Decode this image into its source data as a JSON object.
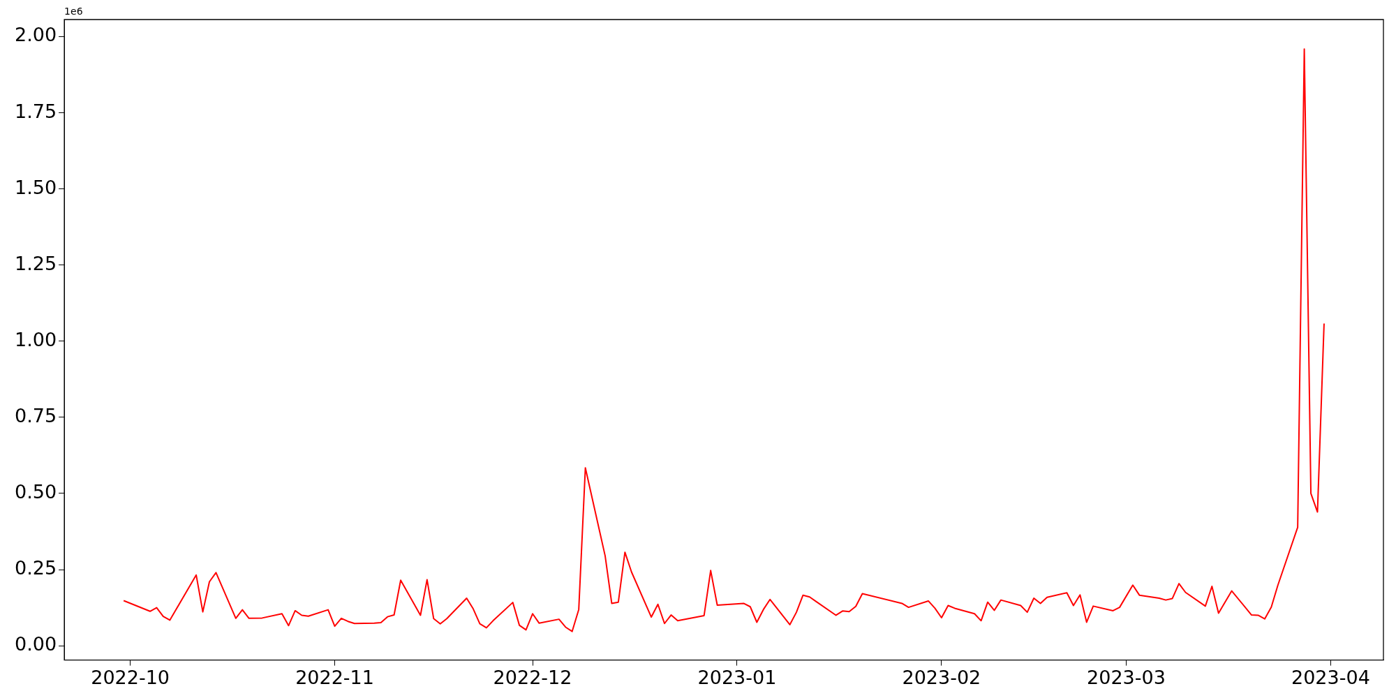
{
  "chart_data": {
    "type": "line",
    "annotations": [
      "1e6"
    ],
    "x": [
      "2022-09-30",
      "2022-10-04",
      "2022-10-05",
      "2022-10-06",
      "2022-10-07",
      "2022-10-11",
      "2022-10-12",
      "2022-10-13",
      "2022-10-14",
      "2022-10-17",
      "2022-10-18",
      "2022-10-19",
      "2022-10-21",
      "2022-10-24",
      "2022-10-25",
      "2022-10-26",
      "2022-10-27",
      "2022-10-28",
      "2022-10-31",
      "2022-11-01",
      "2022-11-02",
      "2022-11-03",
      "2022-11-04",
      "2022-11-07",
      "2022-11-08",
      "2022-11-09",
      "2022-11-10",
      "2022-11-11",
      "2022-11-14",
      "2022-11-15",
      "2022-11-16",
      "2022-11-17",
      "2022-11-18",
      "2022-11-21",
      "2022-11-22",
      "2022-11-23",
      "2022-11-24",
      "2022-11-25",
      "2022-11-28",
      "2022-11-29",
      "2022-11-30",
      "2022-12-01",
      "2022-12-02",
      "2022-12-05",
      "2022-12-06",
      "2022-12-07",
      "2022-12-08",
      "2022-12-09",
      "2022-12-12",
      "2022-12-13",
      "2022-12-14",
      "2022-12-15",
      "2022-12-16",
      "2022-12-19",
      "2022-12-20",
      "2022-12-21",
      "2022-12-22",
      "2022-12-23",
      "2022-12-27",
      "2022-12-28",
      "2022-12-29",
      "2023-01-02",
      "2023-01-03",
      "2023-01-04",
      "2023-01-05",
      "2023-01-06",
      "2023-01-09",
      "2023-01-10",
      "2023-01-11",
      "2023-01-12",
      "2023-01-13",
      "2023-01-16",
      "2023-01-17",
      "2023-01-18",
      "2023-01-19",
      "2023-01-20",
      "2023-01-26",
      "2023-01-27",
      "2023-01-30",
      "2023-01-31",
      "2023-02-01",
      "2023-02-02",
      "2023-02-03",
      "2023-02-06",
      "2023-02-07",
      "2023-02-08",
      "2023-02-09",
      "2023-02-10",
      "2023-02-13",
      "2023-02-14",
      "2023-02-15",
      "2023-02-16",
      "2023-02-17",
      "2023-02-20",
      "2023-02-21",
      "2023-02-22",
      "2023-02-23",
      "2023-02-24",
      "2023-02-27",
      "2023-02-28",
      "2023-03-02",
      "2023-03-03",
      "2023-03-06",
      "2023-03-07",
      "2023-03-08",
      "2023-03-09",
      "2023-03-10",
      "2023-03-13",
      "2023-03-14",
      "2023-03-15",
      "2023-03-17",
      "2023-03-20",
      "2023-03-21",
      "2023-03-22",
      "2023-03-23",
      "2023-03-24",
      "2023-03-27",
      "2023-03-28",
      "2023-03-29",
      "2023-03-30",
      "2023-03-31"
    ],
    "series": [
      {
        "color": "#ff0000",
        "values": [
          0.148,
          0.113,
          0.125,
          0.096,
          0.084,
          0.232,
          0.111,
          0.21,
          0.24,
          0.09,
          0.118,
          0.09,
          0.091,
          0.105,
          0.066,
          0.115,
          0.1,
          0.097,
          0.118,
          0.064,
          0.09,
          0.08,
          0.073,
          0.074,
          0.076,
          0.095,
          0.101,
          0.215,
          0.1,
          0.217,
          0.089,
          0.072,
          0.089,
          0.156,
          0.121,
          0.072,
          0.059,
          0.082,
          0.142,
          0.067,
          0.052,
          0.105,
          0.074,
          0.087,
          0.061,
          0.047,
          0.119,
          0.584,
          0.295,
          0.139,
          0.143,
          0.307,
          0.242,
          0.094,
          0.136,
          0.073,
          0.101,
          0.082,
          0.099,
          0.247,
          0.133,
          0.139,
          0.128,
          0.077,
          0.119,
          0.152,
          0.069,
          0.11,
          0.166,
          0.16,
          0.145,
          0.1,
          0.114,
          0.112,
          0.129,
          0.171,
          0.139,
          0.126,
          0.147,
          0.123,
          0.092,
          0.132,
          0.123,
          0.105,
          0.082,
          0.143,
          0.116,
          0.15,
          0.132,
          0.11,
          0.156,
          0.139,
          0.159,
          0.174,
          0.132,
          0.167,
          0.077,
          0.13,
          0.115,
          0.126,
          0.199,
          0.166,
          0.156,
          0.15,
          0.155,
          0.204,
          0.175,
          0.13,
          0.195,
          0.107,
          0.18,
          0.101,
          0.1,
          0.088,
          0.127,
          0.199,
          0.389,
          1.959,
          0.5,
          0.439,
          1.058
        ]
      }
    ],
    "xlim": [
      "2022-09-21",
      "2023-04-09"
    ],
    "xticks": [
      {
        "value": "2022-10-01",
        "label": "2022-10"
      },
      {
        "value": "2022-11-01",
        "label": "2022-11"
      },
      {
        "value": "2022-12-01",
        "label": "2022-12"
      },
      {
        "value": "2023-01-01",
        "label": "2023-01"
      },
      {
        "value": "2023-02-01",
        "label": "2023-02"
      },
      {
        "value": "2023-03-01",
        "label": "2023-03"
      },
      {
        "value": "2023-04-01",
        "label": "2023-04"
      }
    ],
    "ylim": [
      -0.047,
      2.056
    ],
    "yticks": [
      {
        "value": 0,
        "label": "0.00"
      },
      {
        "value": 0.25,
        "label": "0.25"
      },
      {
        "value": 0.5,
        "label": "0.50"
      },
      {
        "value": 0.75,
        "label": "0.75"
      },
      {
        "value": 1,
        "label": "1.00"
      },
      {
        "value": 1.25,
        "label": "1.25"
      },
      {
        "value": 1.5,
        "label": "1.50"
      },
      {
        "value": 1.75,
        "label": "1.75"
      },
      {
        "value": 2,
        "label": "2.00"
      }
    ],
    "grid": false,
    "legend": false,
    "marker": "none",
    "line_style": "solid"
  }
}
